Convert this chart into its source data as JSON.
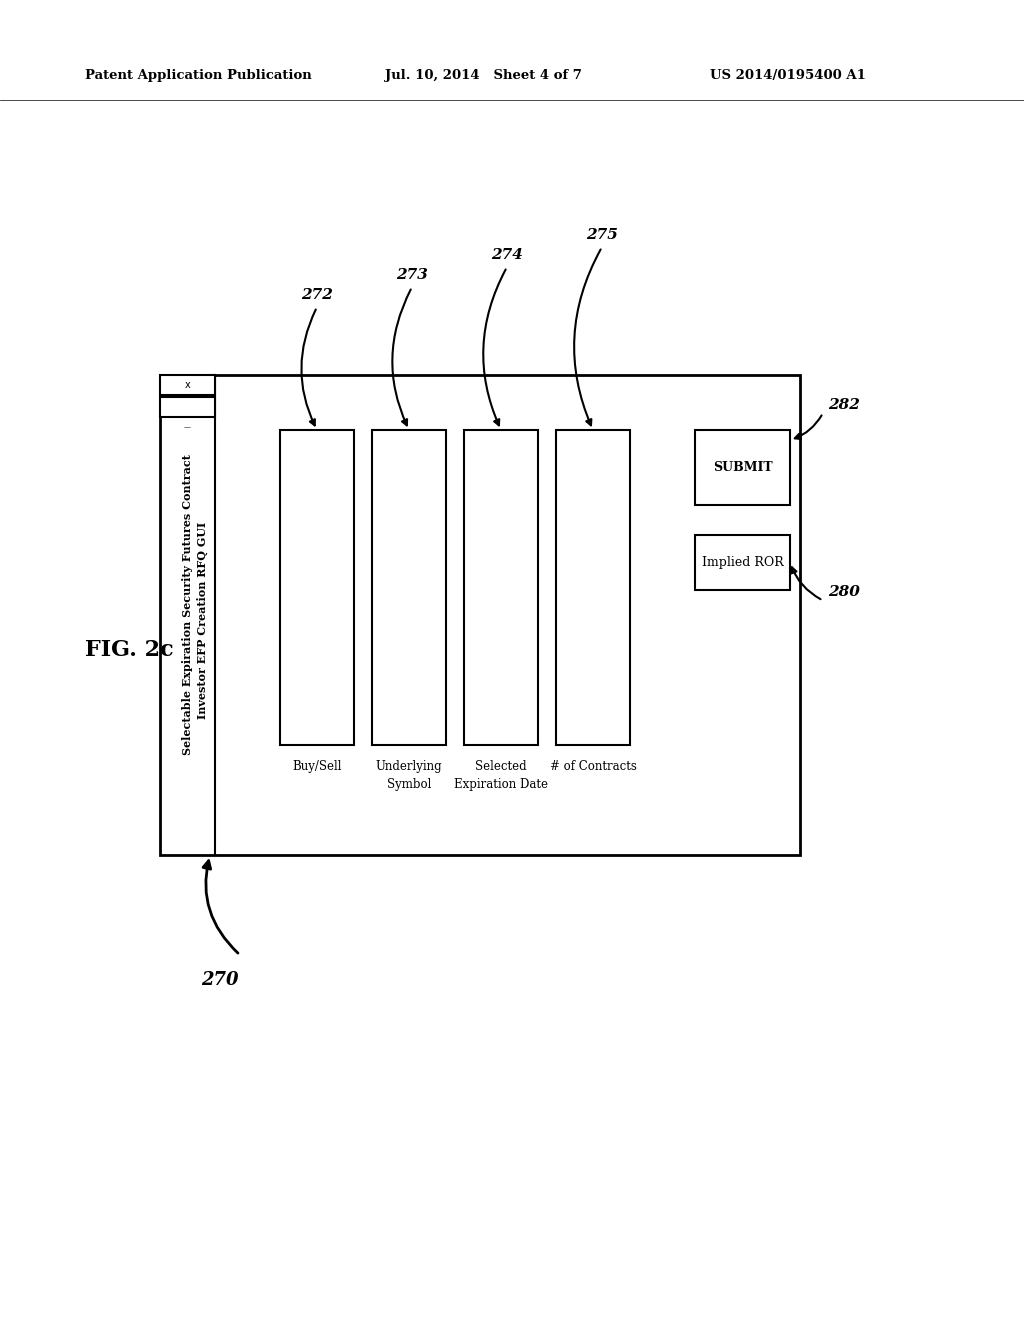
{
  "bg_color": "#ffffff",
  "header_left": "Patent Application Publication",
  "header_mid": "Jul. 10, 2014   Sheet 4 of 7",
  "header_right": "US 2014/0195400 A1",
  "fig_label": "FIG. 2c",
  "title_bar_text1": "Selectable Expiration Security Futures Contract",
  "title_bar_text2": "Investor EFP Creation RFQ GUI",
  "labels": [
    "Buy/Sell",
    "Underlying\nSymbol",
    "Selected\nExpiration Date",
    "# of Contracts"
  ],
  "refs": [
    "272",
    "273",
    "274",
    "275"
  ]
}
